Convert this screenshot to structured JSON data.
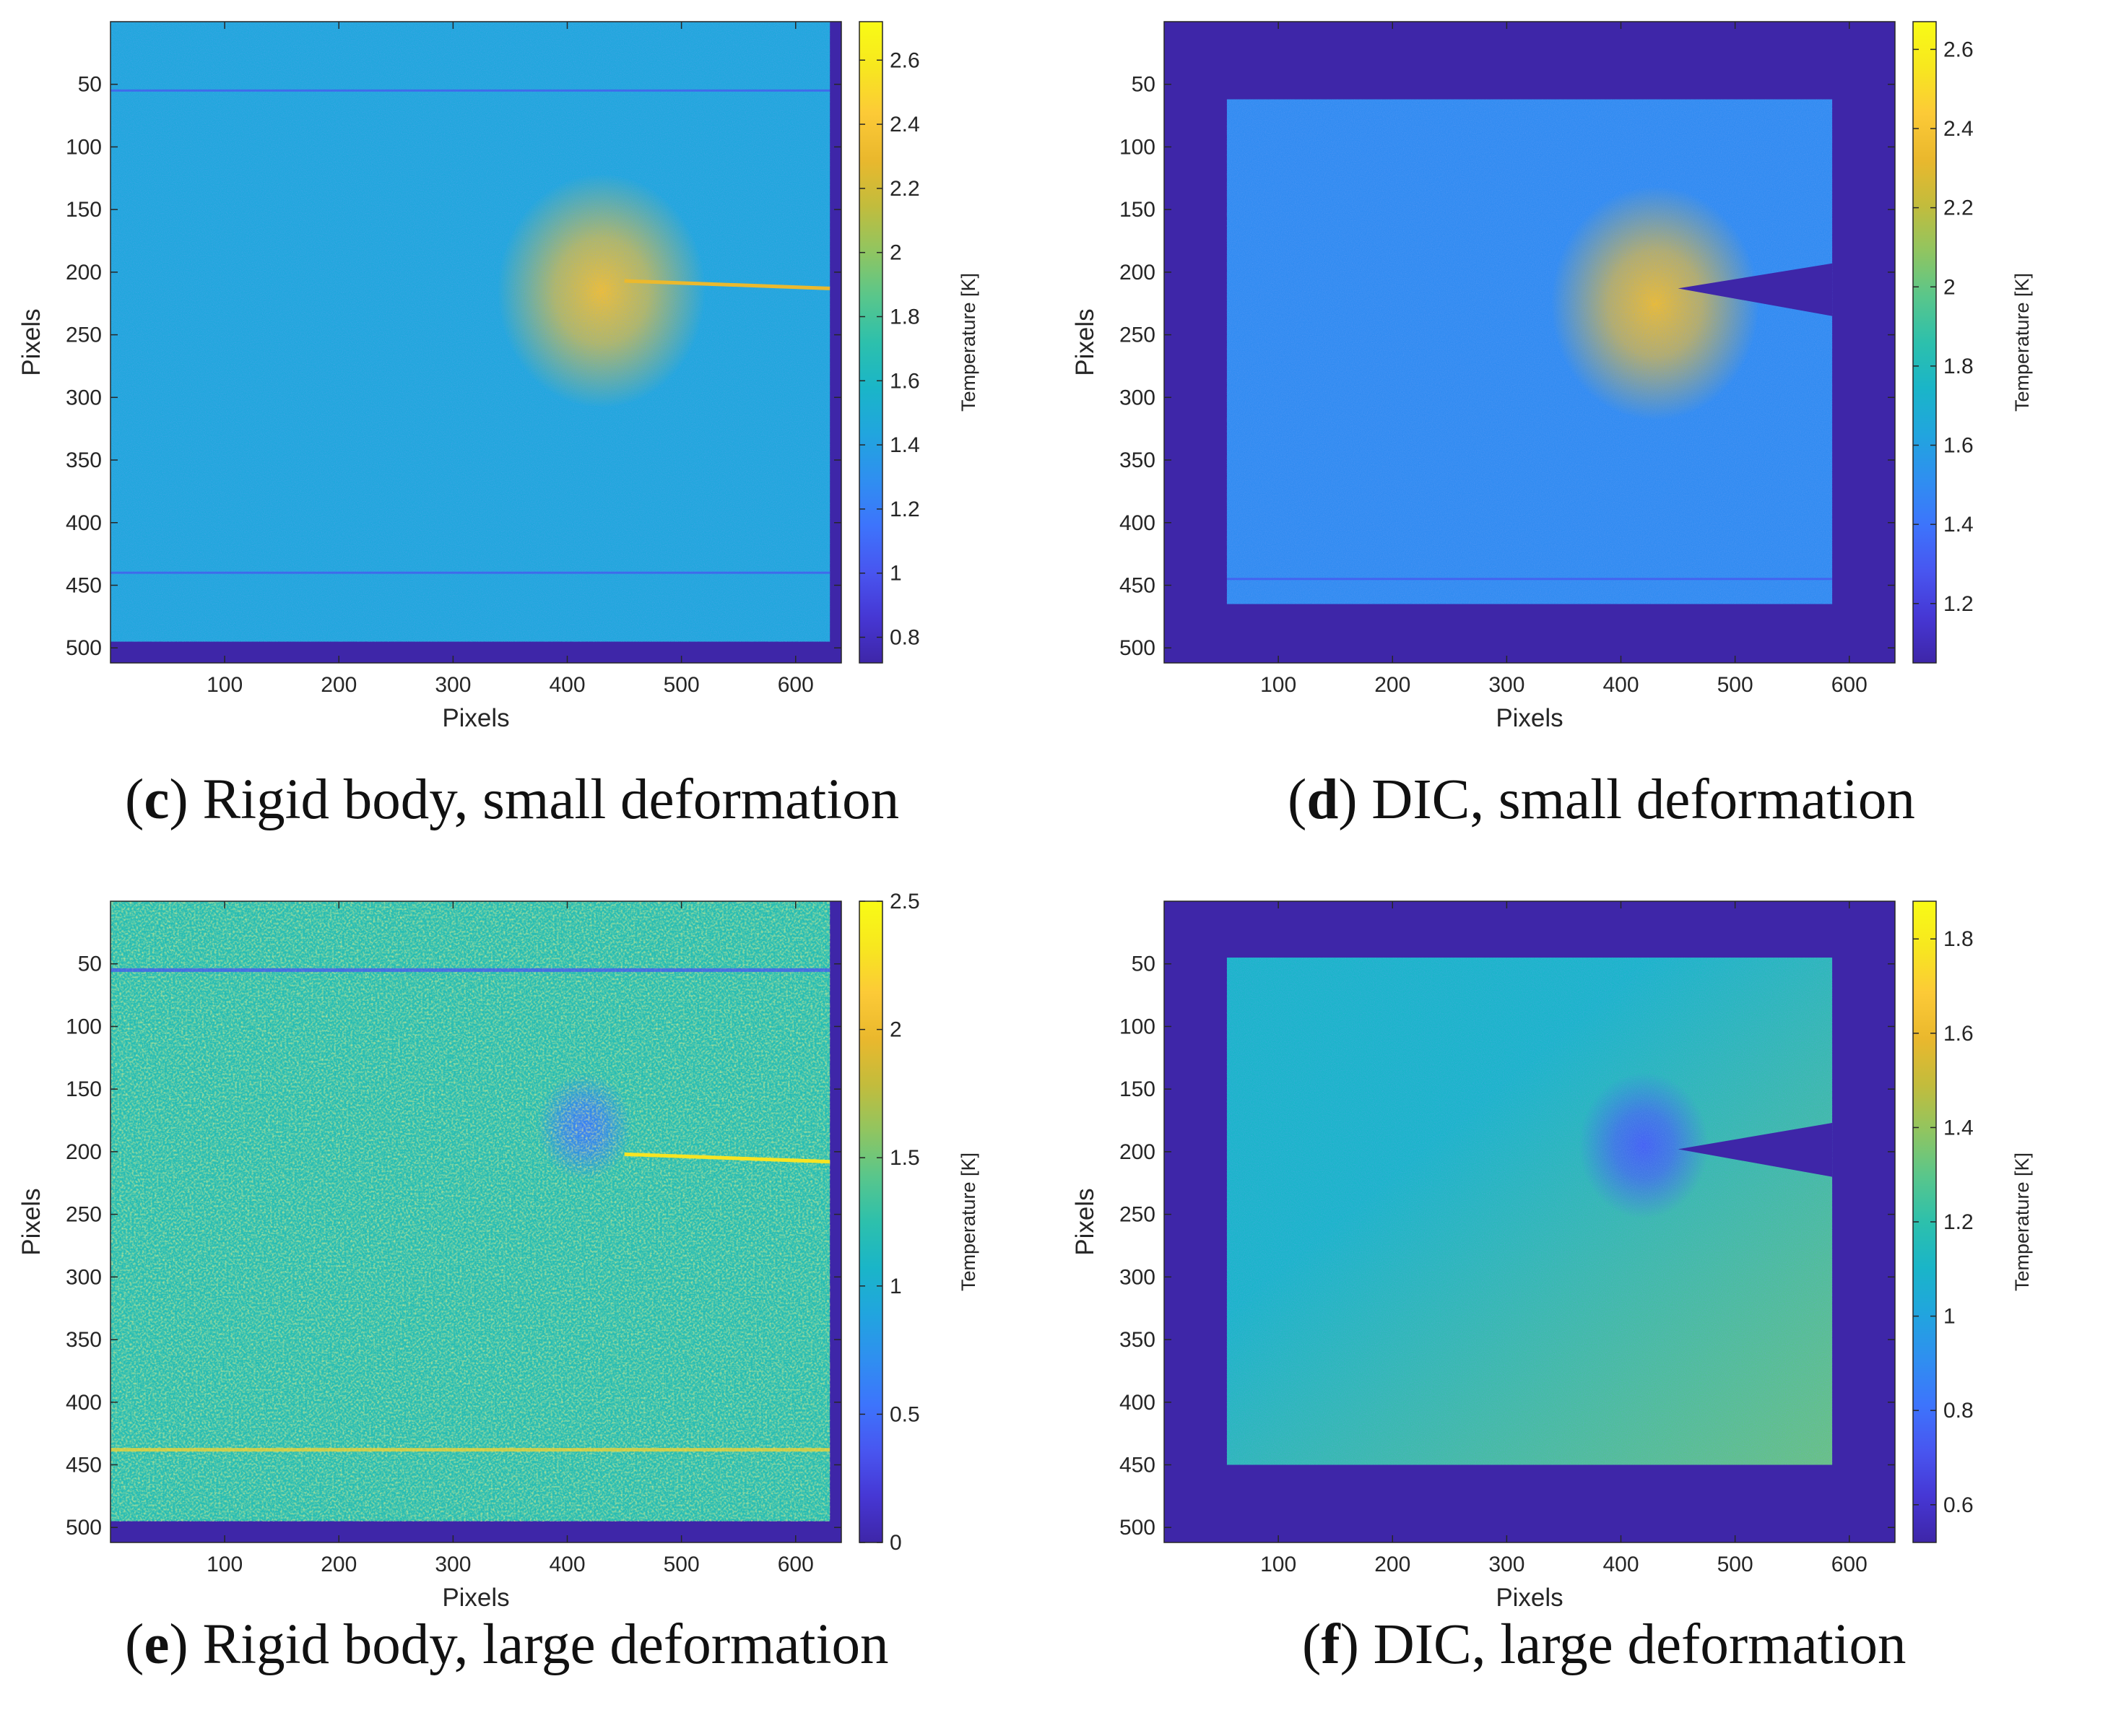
{
  "colormap": [
    "#3e26a8",
    "#4637d4",
    "#4856f0",
    "#3d74fc",
    "#2f8ff0",
    "#21a5de",
    "#1ab5c8",
    "#2dc0ac",
    "#59c68b",
    "#91c560",
    "#c3bc3c",
    "#eab82d",
    "#fcca37",
    "#f7e71f",
    "#f9fb15"
  ],
  "chart_data": [
    {
      "type": "heatmap",
      "panel_id": "c",
      "caption_letter": "c",
      "caption_text": ") Rigid body, small deformation",
      "xlabel": "Pixels",
      "ylabel": "Pixels",
      "colorbar_label": "Temperature [K]",
      "xticks": [
        100,
        200,
        300,
        400,
        500,
        600
      ],
      "yticks": [
        50,
        100,
        150,
        200,
        250,
        300,
        350,
        400,
        450,
        500
      ],
      "xlim": [
        0,
        640
      ],
      "ylim": [
        512,
        0
      ],
      "clim": [
        0.72,
        2.72
      ],
      "cticks": [
        0.8,
        1,
        1.2,
        1.4,
        1.6,
        1.8,
        2,
        2.2,
        2.4,
        2.6
      ],
      "background_value": 1.45,
      "specimen": {
        "x": [
          0,
          630
        ],
        "y": [
          0,
          495
        ]
      },
      "hotspot": {
        "x": 430,
        "y": 215,
        "peak": 2.35
      },
      "crack": {
        "tip_x": 450,
        "end_x": 630,
        "y": 210,
        "value": 2.3
      },
      "notch": null,
      "band_rows": [
        55,
        440
      ]
    },
    {
      "type": "heatmap",
      "panel_id": "d",
      "caption_letter": "d",
      "caption_text": ") DIC, small deformation",
      "xlabel": "Pixels",
      "ylabel": "Pixels",
      "colorbar_label": "Temperature [K]",
      "xticks": [
        100,
        200,
        300,
        400,
        500,
        600
      ],
      "yticks": [
        50,
        100,
        150,
        200,
        250,
        300,
        350,
        400,
        450,
        500
      ],
      "xlim": [
        0,
        640
      ],
      "ylim": [
        512,
        0
      ],
      "clim": [
        1.05,
        2.67
      ],
      "cticks": [
        1.2,
        1.4,
        1.6,
        1.8,
        2,
        2.2,
        2.4,
        2.6
      ],
      "background_value": 1.5,
      "specimen": {
        "x": [
          55,
          585
        ],
        "y": [
          62,
          465
        ]
      },
      "hotspot": {
        "x": 430,
        "y": 225,
        "peak": 2.35
      },
      "crack": null,
      "notch": {
        "tip_x": 450,
        "tip_y": 213,
        "end_x": 585,
        "top_y": 193,
        "bottom_y": 235
      },
      "band_rows": [
        445
      ]
    },
    {
      "type": "heatmap",
      "panel_id": "e",
      "caption_letter": "e",
      "caption_text": ") Rigid body, large deformation",
      "xlabel": "Pixels",
      "ylabel": "Pixels",
      "colorbar_label": "Temperature [K]",
      "xticks": [
        100,
        200,
        300,
        400,
        500,
        600
      ],
      "yticks": [
        50,
        100,
        150,
        200,
        250,
        300,
        350,
        400,
        450,
        500
      ],
      "xlim": [
        0,
        640
      ],
      "ylim": [
        512,
        0
      ],
      "clim": [
        0,
        2.5
      ],
      "cticks": [
        0,
        0.5,
        1,
        1.5,
        2,
        2.5
      ],
      "background_value": 1.2,
      "specimen": {
        "x": [
          0,
          630
        ],
        "y": [
          0,
          495
        ]
      },
      "hotspot": {
        "x": 415,
        "y": 180,
        "peak": 0.6
      },
      "crack": {
        "tip_x": 450,
        "end_x": 630,
        "y": 205,
        "value": 2.3
      },
      "notch": null,
      "band_rows": [
        55,
        438
      ]
    },
    {
      "type": "heatmap",
      "panel_id": "f",
      "caption_letter": "f",
      "caption_text": ") DIC, large deformation",
      "xlabel": "Pixels",
      "ylabel": "Pixels",
      "colorbar_label": "Temperature [K]",
      "xticks": [
        100,
        200,
        300,
        400,
        500,
        600
      ],
      "yticks": [
        50,
        100,
        150,
        200,
        250,
        300,
        350,
        400,
        450,
        500
      ],
      "xlim": [
        0,
        640
      ],
      "ylim": [
        512,
        0
      ],
      "clim": [
        0.52,
        1.88
      ],
      "cticks": [
        0.6,
        0.8,
        1,
        1.2,
        1.4,
        1.6,
        1.8
      ],
      "background_value": 1.1,
      "specimen": {
        "x": [
          55,
          585
        ],
        "y": [
          45,
          450
        ]
      },
      "hotspot": {
        "x": 420,
        "y": 195,
        "peak": 0.75
      },
      "crack": null,
      "notch": {
        "tip_x": 450,
        "tip_y": 198,
        "end_x": 585,
        "top_y": 177,
        "bottom_y": 220
      },
      "band_rows": []
    }
  ]
}
